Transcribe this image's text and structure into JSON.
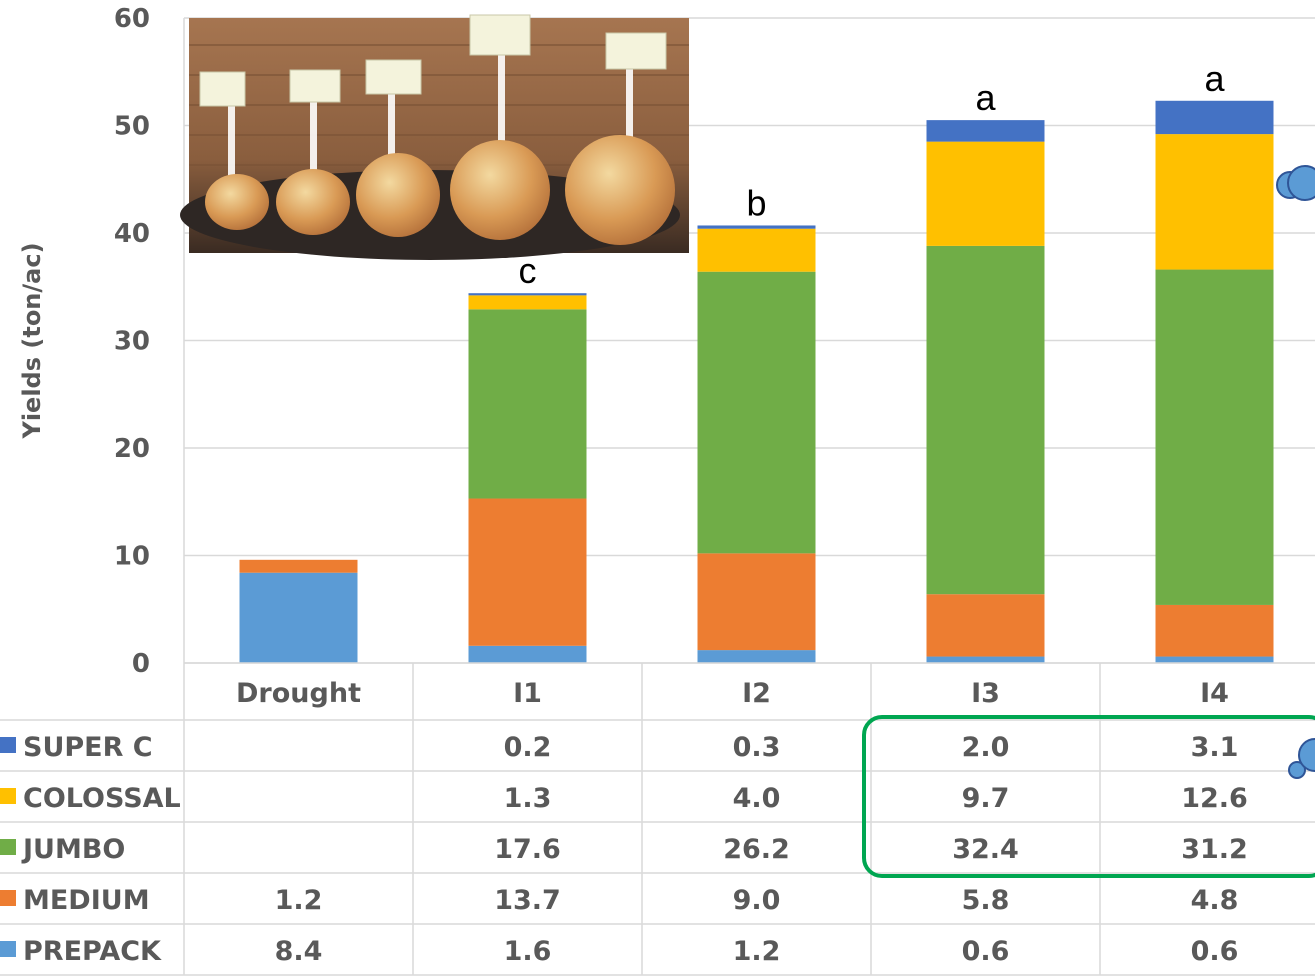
{
  "chart_data": {
    "type": "bar",
    "stacked": true,
    "ylabel": "Yields (ton/ac)",
    "ylim": [
      0,
      60
    ],
    "yticks": [
      0,
      10,
      20,
      30,
      40,
      50,
      60
    ],
    "grid": true,
    "legend_placement": "data table below chart",
    "categories": [
      "Drought",
      "I1",
      "I2",
      "I3",
      "I4"
    ],
    "series": [
      {
        "name": "PREPACK",
        "color": "#5b9bd5",
        "values": [
          8.4,
          1.6,
          1.2,
          0.6,
          0.6
        ],
        "labels": [
          "8.4",
          "1.6",
          "1.2",
          "0.6",
          "0.6"
        ]
      },
      {
        "name": "MEDIUM",
        "color": "#ed7d31",
        "values": [
          1.2,
          13.7,
          9.0,
          5.8,
          4.8
        ],
        "labels": [
          "1.2",
          "13.7",
          "9.0",
          "5.8",
          "4.8"
        ]
      },
      {
        "name": "JUMBO",
        "color": "#70ad47",
        "values": [
          null,
          17.6,
          26.2,
          32.4,
          31.2
        ],
        "labels": [
          "",
          "17.6",
          "26.2",
          "32.4",
          "31.2"
        ]
      },
      {
        "name": "COLOSSAL",
        "color": "#ffc000",
        "values": [
          null,
          1.3,
          4.0,
          9.7,
          12.6
        ],
        "labels": [
          "",
          "1.3",
          "4.0",
          "9.7",
          "12.6"
        ]
      },
      {
        "name": "SUPER C",
        "color": "#4472c4",
        "values": [
          null,
          0.2,
          0.3,
          2.0,
          3.1
        ],
        "labels": [
          "",
          "0.2",
          "0.3",
          "2.0",
          "3.1"
        ]
      }
    ],
    "table_row_order": [
      "SUPER C",
      "COLOSSAL",
      "JUMBO",
      "MEDIUM",
      "PREPACK"
    ],
    "annotations": {
      "significance_letters": [
        "",
        "c",
        "b",
        "a",
        "a"
      ],
      "highlight_box": {
        "categories": [
          "I3",
          "I4"
        ],
        "series": [
          "SUPER C",
          "COLOSSAL",
          "JUMBO"
        ],
        "color": "#00a651"
      },
      "photo": "onion size classes photo"
    }
  }
}
